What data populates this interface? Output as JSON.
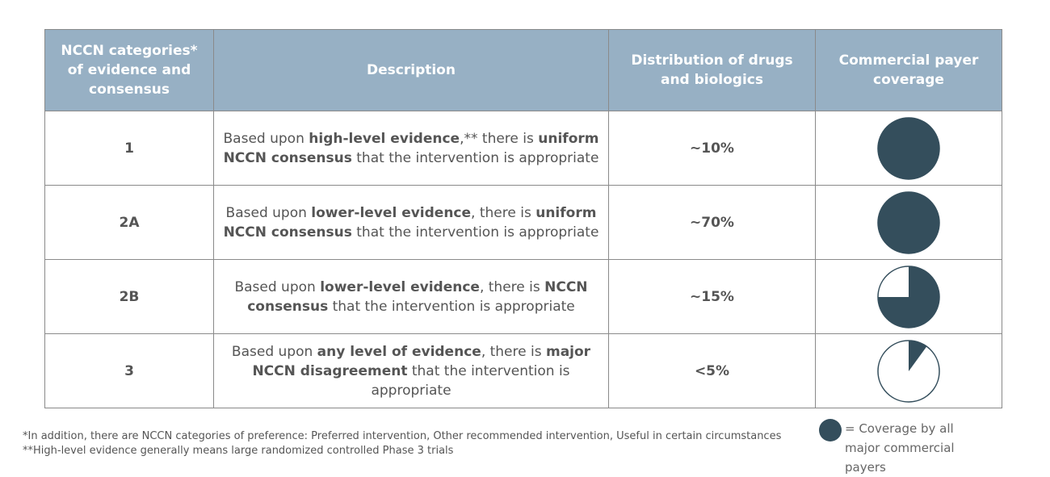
{
  "header": [
    "NCCN categories* of evidence and consensus",
    "Description",
    "Distribution of drugs and biologics",
    "Commercial payer coverage"
  ],
  "rows": [
    {
      "category": "1",
      "desc": [
        {
          "t": "Based upon "
        },
        {
          "t": "high-level evidence",
          "b": true
        },
        {
          "t": ",** there is "
        },
        {
          "t": "uniform NCCN consensus",
          "b": true
        },
        {
          "t": " that the intervention is appropriate"
        }
      ],
      "distribution": "~10%",
      "coverage": 1.0
    },
    {
      "category": "2A",
      "desc": [
        {
          "t": "Based upon "
        },
        {
          "t": "lower-level evidence",
          "b": true
        },
        {
          "t": ", there is "
        },
        {
          "t": "uniform NCCN consensus",
          "b": true
        },
        {
          "t": " that the intervention is appropriate"
        }
      ],
      "distribution": "~70%",
      "coverage": 1.0
    },
    {
      "category": "2B",
      "desc": [
        {
          "t": "Based upon "
        },
        {
          "t": "lower-level evidence",
          "b": true
        },
        {
          "t": ", there is "
        },
        {
          "t": "NCCN consensus",
          "b": true
        },
        {
          "t": " that the intervention is appropriate"
        }
      ],
      "distribution": "~15%",
      "coverage": 0.75
    },
    {
      "category": "3",
      "desc": [
        {
          "t": "Based upon "
        },
        {
          "t": "any level of evidence",
          "b": true
        },
        {
          "t": ", there is "
        },
        {
          "t": "major NCCN disagreement",
          "b": true
        },
        {
          "t": " that the intervention is appropriate"
        }
      ],
      "distribution": "<5%",
      "coverage": 0.1
    }
  ],
  "footnotes": [
    "*In addition, there are NCCN categories of preference: Preferred intervention, Other recommended intervention, Useful in certain circumstances",
    "**High-level evidence generally means large randomized controlled Phase 3 trials"
  ],
  "legend": "= Coverage by all major commercial payers",
  "colors": {
    "header_bg": "#97b0c4",
    "pie": "#344e5c"
  }
}
